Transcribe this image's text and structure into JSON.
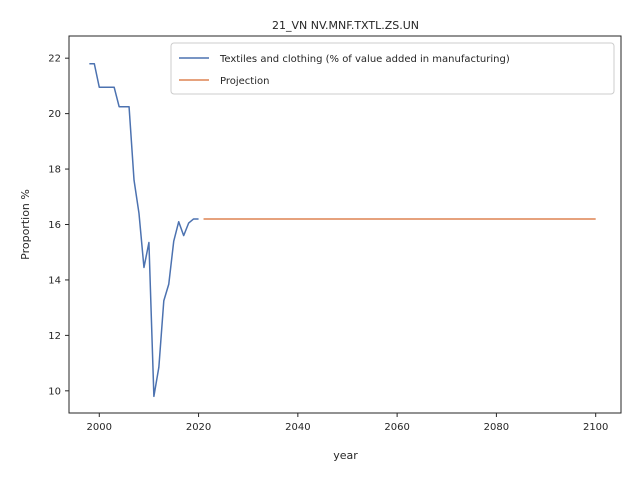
{
  "chart_data": {
    "type": "line",
    "title": "21_VN NV.MNF.TXTL.ZS.UN",
    "xlabel": "year",
    "ylabel": "Proportion %",
    "xlim": [
      1993.9,
      2105.1
    ],
    "ylim": [
      9.2,
      22.8
    ],
    "xticks": [
      2000,
      2020,
      2040,
      2060,
      2080,
      2100
    ],
    "yticks": [
      10,
      12,
      14,
      16,
      18,
      20,
      22
    ],
    "legend_position": "top-right",
    "grid": false,
    "series": [
      {
        "name": "Textiles and clothing (% of value added in manufacturing)",
        "color": "#4c72b0",
        "x": [
          1998,
          1999,
          2000,
          2001,
          2002,
          2003,
          2004,
          2005,
          2006,
          2007,
          2008,
          2009,
          2010,
          2011,
          2012,
          2013,
          2014,
          2015,
          2016,
          2017,
          2018,
          2019,
          2020
        ],
        "y": [
          21.8,
          21.8,
          20.95,
          20.95,
          20.95,
          20.95,
          20.25,
          20.25,
          20.25,
          17.6,
          16.4,
          14.45,
          15.35,
          9.8,
          10.85,
          13.25,
          13.85,
          15.4,
          16.1,
          15.6,
          16.05,
          16.2,
          16.2
        ]
      },
      {
        "name": "Projection",
        "color": "#dd8452",
        "x": [
          2021,
          2100
        ],
        "y": [
          16.2,
          16.2
        ]
      }
    ]
  }
}
